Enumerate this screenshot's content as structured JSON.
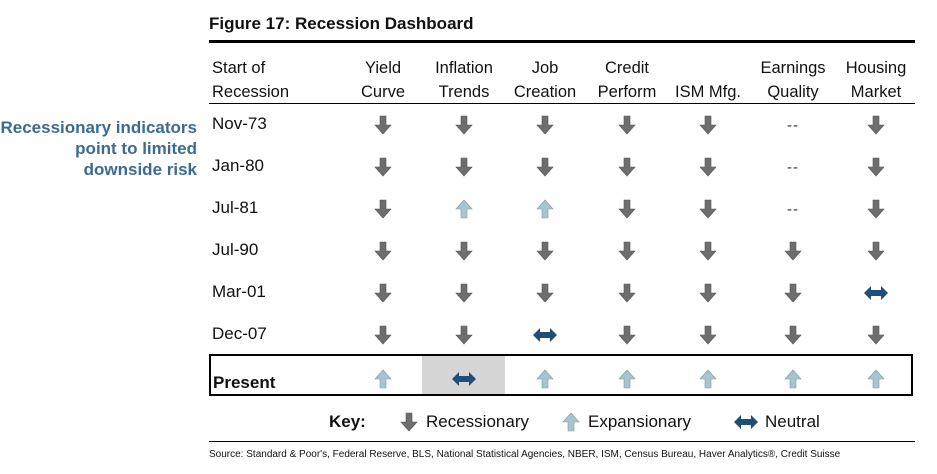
{
  "figure_title": "Figure 17: Recession Dashboard",
  "side_note": "Recessionary indicators point to limited downside risk",
  "header": {
    "first_col": [
      "Start of",
      "Recession"
    ],
    "columns": [
      [
        "Yield",
        "Curve"
      ],
      [
        "Inflation",
        "Trends"
      ],
      [
        "Job",
        "Creation"
      ],
      [
        "Credit",
        "Perform"
      ],
      [
        "ISM Mfg."
      ],
      [
        "Earnings",
        "Quality"
      ],
      [
        "Housing",
        "Market"
      ]
    ]
  },
  "rows": [
    {
      "label": "Nov-73",
      "values": [
        "down",
        "down",
        "down",
        "down",
        "down",
        "none",
        "down"
      ]
    },
    {
      "label": "Jan-80",
      "values": [
        "down",
        "down",
        "down",
        "down",
        "down",
        "none",
        "down"
      ]
    },
    {
      "label": "Jul-81",
      "values": [
        "down",
        "up",
        "up",
        "down",
        "down",
        "none",
        "down"
      ]
    },
    {
      "label": "Jul-90",
      "values": [
        "down",
        "down",
        "down",
        "down",
        "down",
        "down",
        "down"
      ]
    },
    {
      "label": "Mar-01",
      "values": [
        "down",
        "down",
        "down",
        "down",
        "down",
        "down",
        "neutral"
      ]
    },
    {
      "label": "Dec-07",
      "values": [
        "down",
        "down",
        "neutral",
        "down",
        "down",
        "down",
        "down"
      ]
    }
  ],
  "present": {
    "label": "Present",
    "values": [
      "up",
      "neutral",
      "up",
      "up",
      "up",
      "up",
      "up"
    ]
  },
  "no_data_text": "--",
  "key": {
    "title": "Key:",
    "recessionary": "Recessionary",
    "expansionary": "Expansionary",
    "neutral": "Neutral"
  },
  "source": "Source: Standard & Poor's, Federal Reserve, BLS, National Statistical Agencies, NBER, ISM, Census Bureau, Haver Analytics®, Credit Suisse",
  "colors": {
    "down_arrow": "#6e6e6e",
    "up_arrow": "#a8c4cf",
    "neutral_arrow": "#1f4e79",
    "side_note": "#3d6a93",
    "highlight": "#d6d6d6"
  }
}
